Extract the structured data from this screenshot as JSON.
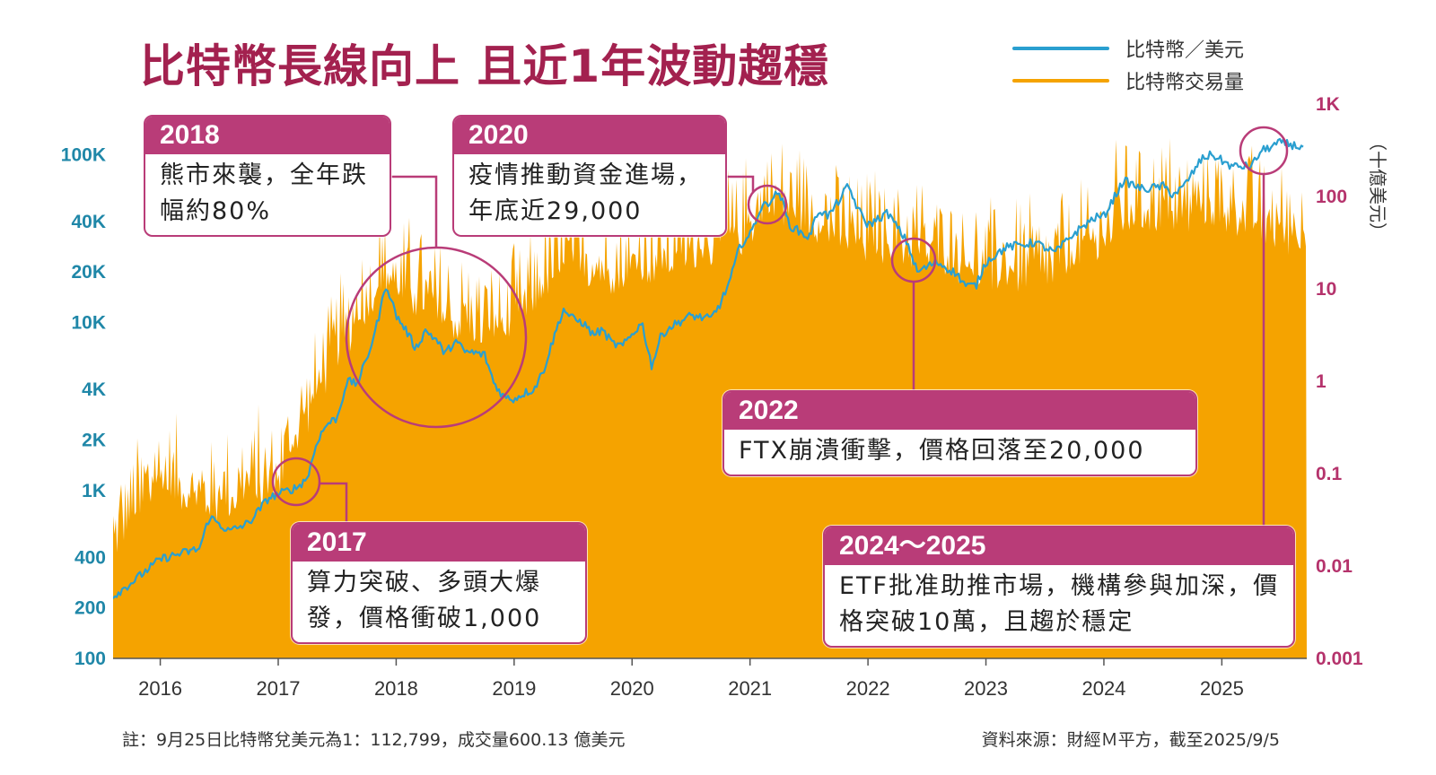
{
  "title": "比特幣長線向上 且近1年波動趨穩",
  "legend": [
    {
      "label": "比特幣／美元",
      "color": "#2a9fd0"
    },
    {
      "label": "比特幣交易量",
      "color": "#f5a300"
    }
  ],
  "y2_unit": "（十億美元）",
  "callouts": [
    {
      "year": "2018",
      "text": "熊市來襲，全年跌幅約80%"
    },
    {
      "year": "2020",
      "text": "疫情推動資金進場，年底近29,000"
    },
    {
      "year": "2017",
      "text": "算力突破、多頭大爆發，價格衝破1,000"
    },
    {
      "year": "2022",
      "text": "FTX崩潰衝擊，價格回落至20,000"
    },
    {
      "year": "2024～2025",
      "text": "ETF批准助推市場，機構參與加深，價格突破10萬，且趨於穩定"
    }
  ],
  "footnote": "註：9月25日比特幣兌美元為1：112,799，成交量600.13 億美元",
  "source": "資料來源：財經Ｍ平方，截至2025/9/5",
  "chart_data": {
    "type": "line",
    "x_ticks": [
      "2016",
      "2017",
      "2018",
      "2019",
      "2020",
      "2021",
      "2022",
      "2023",
      "2024",
      "2025"
    ],
    "y_left_ticks": [
      "100K",
      "40K",
      "20K",
      "10K",
      "4K",
      "2K",
      "1K",
      "400",
      "200",
      "100"
    ],
    "y_right_ticks": [
      "1K",
      "100",
      "10",
      "1",
      "0.1",
      "0.01",
      "0.001"
    ],
    "y_left_range": [
      100,
      200000
    ],
    "y_right_range": [
      0.001,
      1000
    ],
    "y_left_scale": "log",
    "y_right_scale": "log",
    "colors": {
      "price": "#2a9fd0",
      "volume": "#f5a300",
      "accent": "#b93c78"
    },
    "series": [
      {
        "name": "比特幣／美元",
        "axis": "left",
        "points": [
          [
            "2015-08",
            230
          ],
          [
            "2015-10",
            280
          ],
          [
            "2016-01",
            390
          ],
          [
            "2016-03",
            420
          ],
          [
            "2016-05",
            450
          ],
          [
            "2016-06",
            700
          ],
          [
            "2016-08",
            570
          ],
          [
            "2016-10",
            640
          ],
          [
            "2016-12",
            900
          ],
          [
            "2017-01",
            950
          ],
          [
            "2017-03",
            1050
          ],
          [
            "2017-04",
            1200
          ],
          [
            "2017-05",
            2000
          ],
          [
            "2017-06",
            2500
          ],
          [
            "2017-07",
            2700
          ],
          [
            "2017-08",
            4500
          ],
          [
            "2017-09",
            4300
          ],
          [
            "2017-10",
            6000
          ],
          [
            "2017-11",
            9500
          ],
          [
            "2017-12",
            17000
          ],
          [
            "2018-01",
            11000
          ],
          [
            "2018-02",
            9000
          ],
          [
            "2018-03",
            7000
          ],
          [
            "2018-04",
            9000
          ],
          [
            "2018-05",
            8000
          ],
          [
            "2018-06",
            6500
          ],
          [
            "2018-07",
            7800
          ],
          [
            "2018-08",
            6700
          ],
          [
            "2018-09",
            6600
          ],
          [
            "2018-10",
            6400
          ],
          [
            "2018-11",
            4300
          ],
          [
            "2018-12",
            3600
          ],
          [
            "2019-01",
            3500
          ],
          [
            "2019-02",
            3800
          ],
          [
            "2019-03",
            4000
          ],
          [
            "2019-04",
            5200
          ],
          [
            "2019-05",
            8000
          ],
          [
            "2019-06",
            12000
          ],
          [
            "2019-07",
            10500
          ],
          [
            "2019-08",
            10000
          ],
          [
            "2019-09",
            8500
          ],
          [
            "2019-10",
            9000
          ],
          [
            "2019-11",
            7500
          ],
          [
            "2019-12",
            7200
          ],
          [
            "2020-01",
            8500
          ],
          [
            "2020-02",
            10000
          ],
          [
            "2020-03",
            5500
          ],
          [
            "2020-04",
            8500
          ],
          [
            "2020-05",
            9500
          ],
          [
            "2020-07",
            11000
          ],
          [
            "2020-09",
            10500
          ],
          [
            "2020-10",
            13000
          ],
          [
            "2020-11",
            18000
          ],
          [
            "2020-12",
            29000
          ],
          [
            "2021-01",
            33000
          ],
          [
            "2021-02",
            47000
          ],
          [
            "2021-04",
            60000
          ],
          [
            "2021-05",
            38000
          ],
          [
            "2021-07",
            32000
          ],
          [
            "2021-08",
            47000
          ],
          [
            "2021-09",
            43000
          ],
          [
            "2021-11",
            65000
          ],
          [
            "2021-12",
            47000
          ],
          [
            "2022-01",
            38000
          ],
          [
            "2022-03",
            45000
          ],
          [
            "2022-05",
            30000
          ],
          [
            "2022-06",
            20000
          ],
          [
            "2022-08",
            23000
          ],
          [
            "2022-10",
            19500
          ],
          [
            "2022-11",
            16500
          ],
          [
            "2022-12",
            16600
          ],
          [
            "2023-01",
            23000
          ],
          [
            "2023-03",
            28000
          ],
          [
            "2023-06",
            30000
          ],
          [
            "2023-08",
            26000
          ],
          [
            "2023-10",
            34000
          ],
          [
            "2023-12",
            42000
          ],
          [
            "2024-01",
            43000
          ],
          [
            "2024-03",
            70000
          ],
          [
            "2024-05",
            62000
          ],
          [
            "2024-07",
            65000
          ],
          [
            "2024-08",
            58000
          ],
          [
            "2024-09",
            63000
          ],
          [
            "2024-11",
            95000
          ],
          [
            "2024-12",
            100000
          ],
          [
            "2025-02",
            85000
          ],
          [
            "2025-04",
            85000
          ],
          [
            "2025-05",
            105000
          ],
          [
            "2025-07",
            118000
          ],
          [
            "2025-08",
            115000
          ],
          [
            "2025-09",
            111000
          ]
        ]
      },
      {
        "name": "比特幣交易量",
        "axis": "right",
        "points": [
          [
            "2015-08",
            0.02
          ],
          [
            "2016-01",
            0.1
          ],
          [
            "2016-06",
            0.05
          ],
          [
            "2017-01",
            0.1
          ],
          [
            "2017-06",
            1.5
          ],
          [
            "2017-12",
            15
          ],
          [
            "2018-06",
            5
          ],
          [
            "2018-12",
            4
          ],
          [
            "2019-06",
            20
          ],
          [
            "2019-12",
            15
          ],
          [
            "2020-06",
            25
          ],
          [
            "2020-12",
            40
          ],
          [
            "2021-03",
            100
          ],
          [
            "2021-12",
            35
          ],
          [
            "2022-06",
            30
          ],
          [
            "2022-12",
            18
          ],
          [
            "2023-06",
            15
          ],
          [
            "2023-12",
            30
          ],
          [
            "2024-03",
            70
          ],
          [
            "2024-12",
            80
          ],
          [
            "2025-06",
            50
          ],
          [
            "2025-09",
            40
          ]
        ]
      }
    ]
  }
}
